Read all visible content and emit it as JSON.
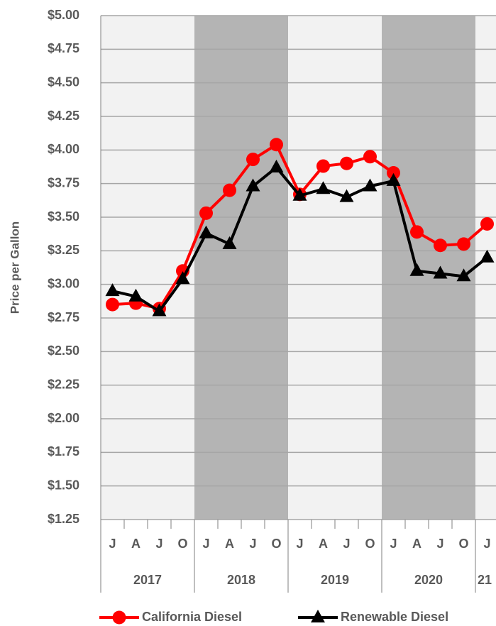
{
  "chart_data": {
    "type": "line",
    "y_label": "Price per Gallon",
    "categories": [
      "J",
      "A",
      "J",
      "O",
      "J",
      "A",
      "J",
      "O",
      "J",
      "A",
      "J",
      "O",
      "J",
      "A",
      "J",
      "O",
      "J"
    ],
    "x_groups": [
      "2017",
      "2018",
      "2019",
      "2020",
      "21"
    ],
    "series": [
      {
        "name": "California Diesel",
        "color": "#ff0000",
        "marker": "circle",
        "values": [
          2.85,
          2.86,
          2.82,
          3.1,
          3.53,
          3.7,
          3.93,
          4.04,
          3.67,
          3.88,
          3.9,
          3.95,
          3.83,
          3.39,
          3.29,
          3.3,
          3.45
        ]
      },
      {
        "name": "Renewable Diesel",
        "color": "#000000",
        "marker": "triangle",
        "values": [
          2.95,
          2.91,
          2.8,
          3.04,
          3.38,
          3.3,
          3.73,
          3.87,
          3.66,
          3.71,
          3.65,
          3.73,
          3.77,
          3.1,
          3.08,
          3.06,
          3.2
        ]
      }
    ],
    "ylim": [
      1.25,
      5.0
    ],
    "yticks": [
      {
        "value": 1.25,
        "label": "$1.25"
      },
      {
        "value": 1.5,
        "label": "$1.50"
      },
      {
        "value": 1.75,
        "label": "$1.75"
      },
      {
        "value": 2,
        "label": "$2.00"
      },
      {
        "value": 2.25,
        "label": "$2.25"
      },
      {
        "value": 2.5,
        "label": "$2.50"
      },
      {
        "value": 2.75,
        "label": "$2.75"
      },
      {
        "value": 3,
        "label": "$3.00"
      },
      {
        "value": 3.25,
        "label": "$3.25"
      },
      {
        "value": 3.5,
        "label": "$3.50"
      },
      {
        "value": 3.75,
        "label": "$3.75"
      },
      {
        "value": 4,
        "label": "$4.00"
      },
      {
        "value": 4.25,
        "label": "$4.25"
      },
      {
        "value": 4.5,
        "label": "$4.50"
      },
      {
        "value": 4.75,
        "label": "$4.75"
      },
      {
        "value": 5,
        "label": "$5.00"
      }
    ],
    "grid": true
  }
}
